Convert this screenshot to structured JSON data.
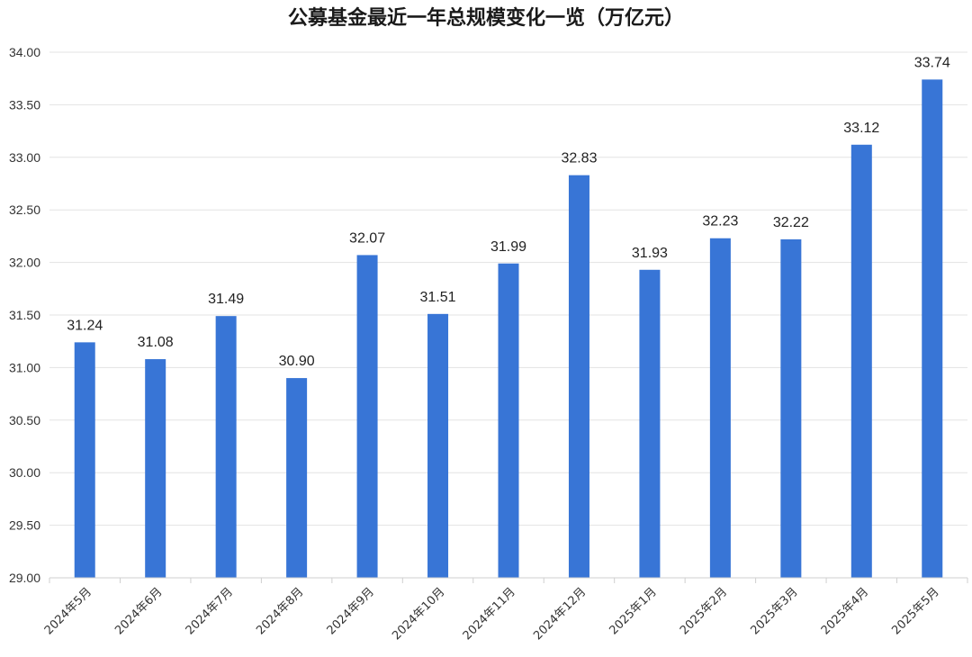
{
  "chart_data": {
    "type": "bar",
    "title": "公募基金最近一年总规模变化一览（万亿元）",
    "xlabel": "",
    "ylabel": "",
    "categories": [
      "2024年5月",
      "2024年6月",
      "2024年7月",
      "2024年8月",
      "2024年9月",
      "2024年10月",
      "2024年11月",
      "2024年12月",
      "2025年1月",
      "2025年2月",
      "2025年3月",
      "2025年4月",
      "2025年5月"
    ],
    "series": [
      {
        "values": [
          31.24,
          31.08,
          31.49,
          30.9,
          32.07,
          31.51,
          31.99,
          32.83,
          31.93,
          32.23,
          32.22,
          33.12,
          33.74
        ]
      }
    ],
    "value_labels": [
      "31.24",
      "31.08",
      "31.49",
      "30.90",
      "32.07",
      "31.51",
      "31.99",
      "32.83",
      "31.93",
      "32.23",
      "32.22",
      "33.12",
      "33.74"
    ],
    "ylim": [
      29.0,
      34.0
    ],
    "yticks": [
      "29.00",
      "29.50",
      "30.00",
      "30.50",
      "31.00",
      "31.50",
      "32.00",
      "32.50",
      "33.00",
      "33.50",
      "34.00"
    ],
    "grid": true,
    "legend": "none",
    "bar_color": "#3875d6"
  }
}
